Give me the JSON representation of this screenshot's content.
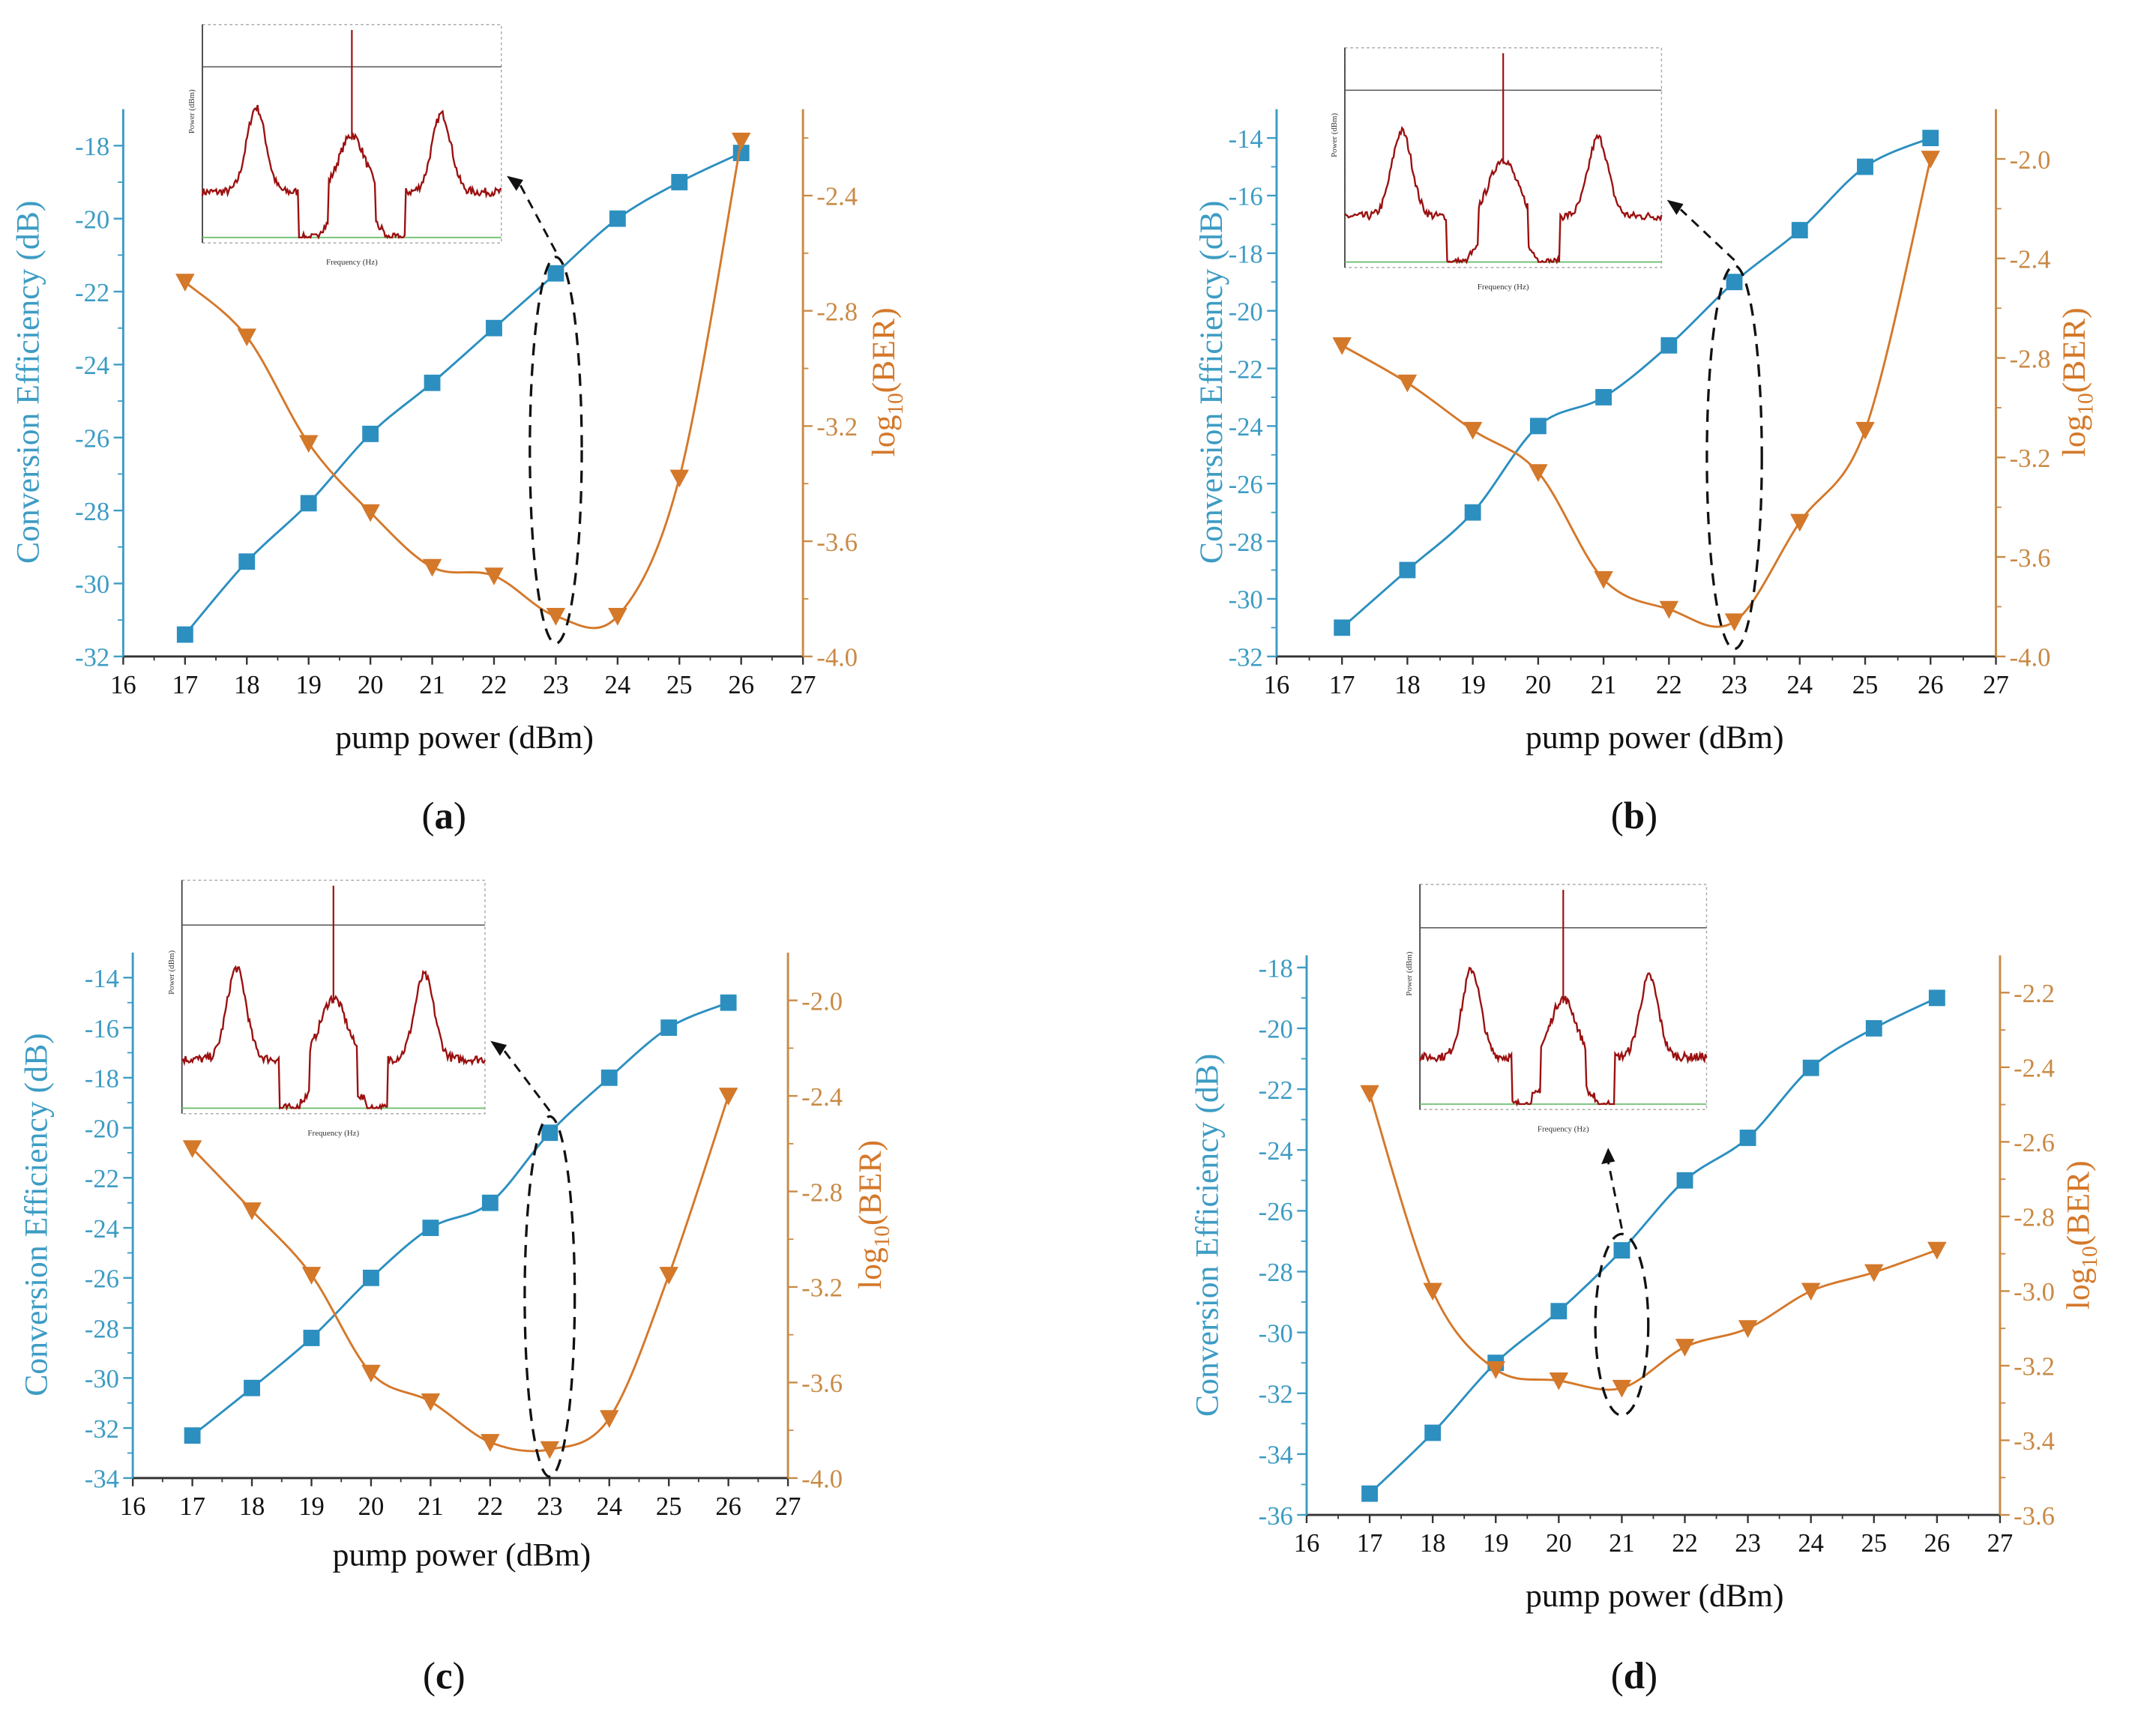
{
  "colors": {
    "ce": "#2c8fc0",
    "ce_axis": "#3d9cc4",
    "ber": "#d4782a",
    "ber_axis": "#c98a45",
    "spectrum": "#9b1010",
    "baseline": "#6fbf73"
  },
  "chart_data": [
    {
      "panel_label": "a",
      "type": "line",
      "xlabel": "pump power (dBm)",
      "ylabel": "Conversion Efficiency (dB)",
      "y2label": {
        "prefix": "log",
        "sub": "10",
        "suffix": "(BER)"
      },
      "xlim": [
        16,
        27
      ],
      "xticks": [
        16,
        17,
        18,
        19,
        20,
        21,
        22,
        23,
        24,
        25,
        26,
        27
      ],
      "ylim": [
        -32,
        -17
      ],
      "yticks": [
        -32,
        -30,
        -28,
        -26,
        -24,
        -22,
        -20,
        -18
      ],
      "y2lim": [
        -4.0,
        -2.1
      ],
      "y2ticks": [
        "-4.0",
        "-3.6",
        "-3.2",
        "-2.8",
        "-2.4"
      ],
      "x": [
        17,
        18,
        19,
        20,
        21,
        22,
        23,
        24,
        25,
        26
      ],
      "series": [
        {
          "name": "Conversion Efficiency",
          "axis": "left",
          "marker": "square",
          "values": [
            -31.4,
            -29.4,
            -27.8,
            -25.9,
            -24.5,
            -23.0,
            -21.5,
            -20.0,
            -19.0,
            -18.2
          ]
        },
        {
          "name": "log10(BER)",
          "axis": "right",
          "marker": "triangle-down",
          "values": [
            -2.7,
            -2.89,
            -3.26,
            -3.5,
            -3.69,
            -3.72,
            -3.86,
            -3.86,
            -3.38,
            -2.21
          ]
        }
      ],
      "highlight_x": 23,
      "inset": {
        "xlabel": "Frequency (Hz)",
        "ylabel": "Power (dBm)"
      }
    },
    {
      "panel_label": "b",
      "type": "line",
      "xlabel": "pump power (dBm)",
      "ylabel": "Conversion Efficiency (dB)",
      "y2label": {
        "prefix": "log",
        "sub": "10",
        "suffix": "(BER)"
      },
      "xlim": [
        16,
        27
      ],
      "xticks": [
        16,
        17,
        18,
        19,
        20,
        21,
        22,
        23,
        24,
        25,
        26,
        27
      ],
      "ylim": [
        -32,
        -13
      ],
      "yticks": [
        -32,
        -30,
        -28,
        -26,
        -24,
        -22,
        -20,
        -18,
        -16,
        -14
      ],
      "y2lim": [
        -4.0,
        -1.8
      ],
      "y2ticks": [
        "-4.0",
        "-3.6",
        "-3.2",
        "-2.8",
        "-2.4",
        "-2.0"
      ],
      "x": [
        17,
        18,
        19,
        20,
        21,
        22,
        23,
        24,
        25,
        26
      ],
      "series": [
        {
          "name": "Conversion Efficiency",
          "axis": "left",
          "marker": "square",
          "values": [
            -31.0,
            -29.0,
            -27.0,
            -24.0,
            -23.0,
            -21.2,
            -19.0,
            -17.2,
            -15.0,
            -14.0
          ]
        },
        {
          "name": "log10(BER)",
          "axis": "right",
          "marker": "triangle-down",
          "values": [
            -2.75,
            -2.9,
            -3.09,
            -3.26,
            -3.69,
            -3.81,
            -3.86,
            -3.46,
            -3.09,
            -2.0
          ]
        }
      ],
      "highlight_x": 23,
      "inset": {
        "xlabel": "Frequency (Hz)",
        "ylabel": "Power (dBm)"
      }
    },
    {
      "panel_label": "c",
      "type": "line",
      "xlabel": "pump power (dBm)",
      "ylabel": "Conversion Efficiency (dB)",
      "y2label": {
        "prefix": "log",
        "sub": "10",
        "suffix": "(BER)"
      },
      "xlim": [
        16,
        27
      ],
      "xticks": [
        16,
        17,
        18,
        19,
        20,
        21,
        22,
        23,
        24,
        25,
        26,
        27
      ],
      "ylim": [
        -34,
        -13
      ],
      "yticks": [
        -34,
        -32,
        -30,
        -28,
        -26,
        -24,
        -22,
        -20,
        -18,
        -16,
        -14
      ],
      "y2lim": [
        -4.0,
        -1.8
      ],
      "y2ticks": [
        "-4.0",
        "-3.6",
        "-3.2",
        "-2.8",
        "-2.4",
        "-2.0"
      ],
      "x": [
        17,
        18,
        19,
        20,
        21,
        22,
        23,
        24,
        25,
        26
      ],
      "series": [
        {
          "name": "Conversion Efficiency",
          "axis": "left",
          "marker": "square",
          "values": [
            -32.3,
            -30.4,
            -28.4,
            -26.0,
            -24.0,
            -23.0,
            -20.2,
            -18.0,
            -16.0,
            -15.0
          ]
        },
        {
          "name": "log10(BER)",
          "axis": "right",
          "marker": "triangle-down",
          "values": [
            -2.62,
            -2.88,
            -3.15,
            -3.56,
            -3.68,
            -3.85,
            -3.88,
            -3.75,
            -3.15,
            -2.4
          ]
        }
      ],
      "highlight_x": 23,
      "inset": {
        "xlabel": "Frequency (Hz)",
        "ylabel": "Power (dBm)"
      }
    },
    {
      "panel_label": "d",
      "type": "line",
      "xlabel": "pump power (dBm)",
      "ylabel": "Conversion Efficiency (dB)",
      "y2label": {
        "prefix": "log",
        "sub": "10",
        "suffix": "(BER)"
      },
      "xlim": [
        16,
        27
      ],
      "xticks": [
        16,
        17,
        18,
        19,
        20,
        21,
        22,
        23,
        24,
        25,
        26,
        27
      ],
      "ylim": [
        -36,
        -17.6
      ],
      "yticks": [
        -36,
        -34,
        -32,
        -30,
        -28,
        -26,
        -24,
        -22,
        -20,
        -18
      ],
      "y2lim": [
        -3.6,
        -2.1
      ],
      "y2ticks": [
        "-3.6",
        "-3.4",
        "-3.2",
        "-3.0",
        "-2.8",
        "-2.6",
        "-2.4",
        "-2.2"
      ],
      "x": [
        17,
        18,
        19,
        20,
        21,
        22,
        23,
        24,
        25,
        26
      ],
      "series": [
        {
          "name": "Conversion Efficiency",
          "axis": "left",
          "marker": "square",
          "values": [
            -35.3,
            -33.3,
            -31.0,
            -29.3,
            -27.3,
            -25.0,
            -23.6,
            -21.3,
            -20.0,
            -19.0
          ]
        },
        {
          "name": "log10(BER)",
          "axis": "right",
          "marker": "triangle-down",
          "values": [
            -2.47,
            -3.0,
            -3.21,
            -3.24,
            -3.26,
            -3.15,
            -3.1,
            -3.0,
            -2.95,
            -2.89
          ]
        }
      ],
      "highlight_x": 21,
      "inset": {
        "xlabel": "Frequency (Hz)",
        "ylabel": "Power (dBm)"
      }
    }
  ]
}
